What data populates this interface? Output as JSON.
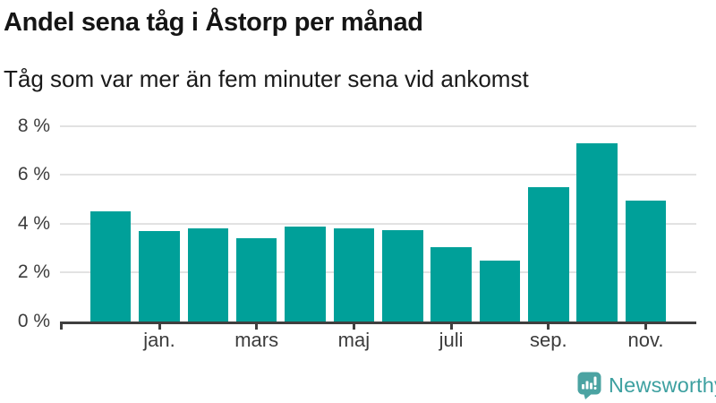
{
  "title": "Andel sena tåg i Åstorp per månad",
  "subtitle": "Tåg som var mer än fem minuter sena vid ankomst",
  "branding": {
    "logo_text": "Newsworthy",
    "logo_icon": "bar-chart-speech-bubble-icon"
  },
  "colors": {
    "bar": "#00a099",
    "gridline": "#e2e2e2",
    "axis": "#3f3f3f",
    "tick_label": "#3c3c3c",
    "title_text": "#151515",
    "subtitle_text": "#1a1a1a",
    "logo_icon": "#4ba3a2",
    "logo_text": "#3da0a0"
  },
  "chart_data": {
    "type": "bar",
    "title": "Andel sena tåg i Åstorp per månad",
    "subtitle": "Tåg som var mer än fem minuter sena vid ankomst",
    "categories": [
      "",
      "jan.",
      "",
      "mars",
      "",
      "maj",
      "",
      "juli",
      "",
      "sep.",
      "",
      "nov."
    ],
    "values": [
      4.5,
      3.7,
      3.8,
      3.4,
      3.9,
      3.8,
      3.75,
      3.05,
      2.5,
      5.5,
      7.3,
      4.95
    ],
    "unit": "%",
    "xlabel": "",
    "ylabel": "",
    "ylim": [
      0,
      8
    ],
    "y_ticks": [
      0,
      2,
      4,
      6,
      8
    ],
    "y_tick_labels": [
      "0 %",
      "2 %",
      "4 %",
      "6 %",
      "8 %"
    ],
    "grid": "horizontal",
    "legend": "none",
    "bar_color": "#00a099"
  }
}
